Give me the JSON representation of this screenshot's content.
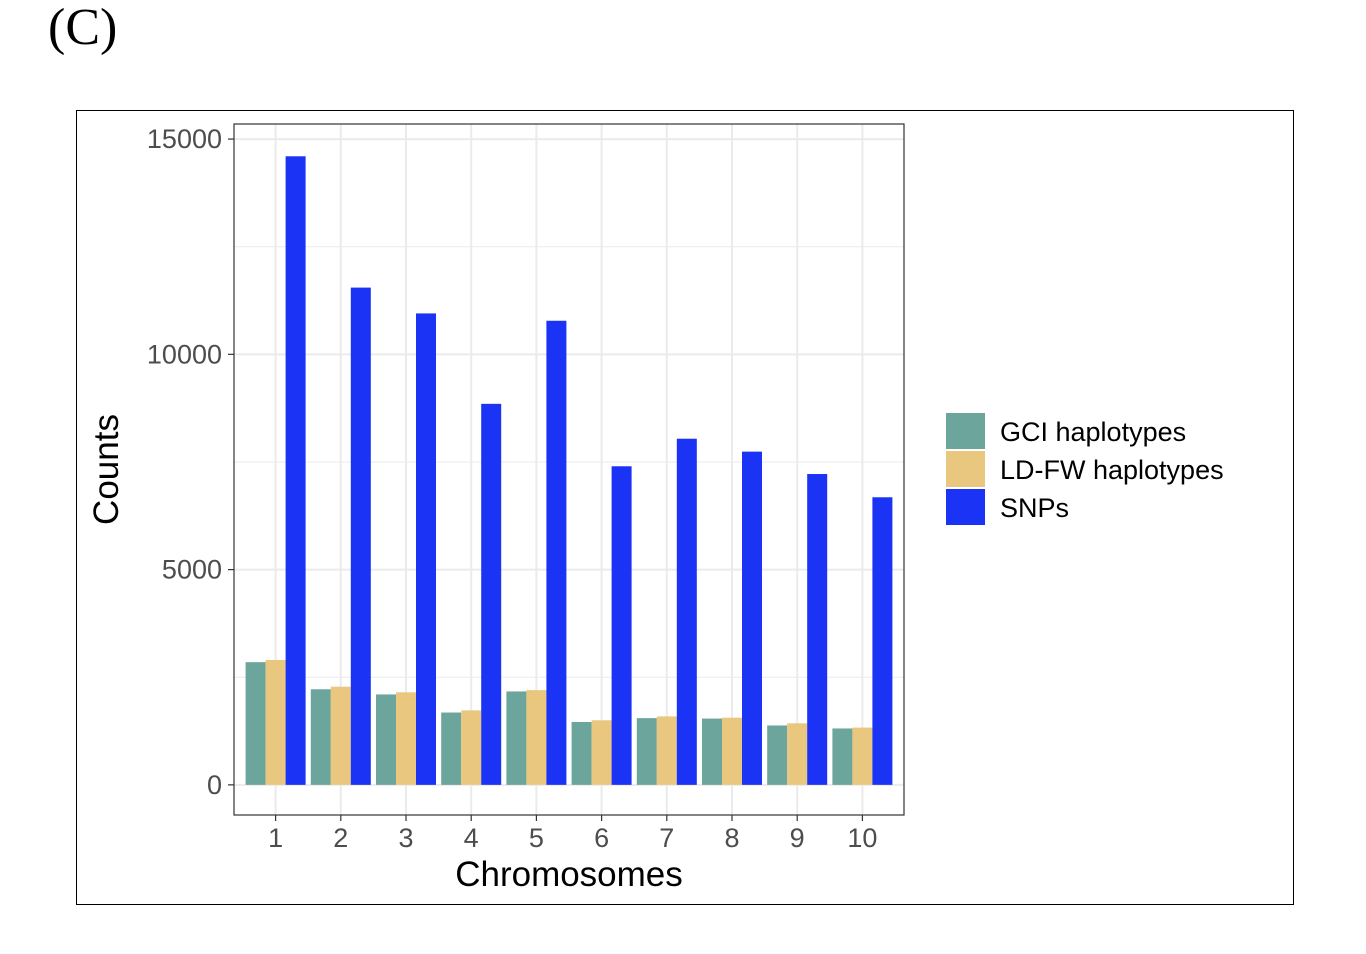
{
  "panel_label": "(C)",
  "chart_data": {
    "type": "bar",
    "title": "",
    "xlabel": "Chromosomes",
    "ylabel": "Counts",
    "categories": [
      "1",
      "2",
      "3",
      "4",
      "5",
      "6",
      "7",
      "8",
      "9",
      "10"
    ],
    "ylim": [
      -700,
      15350
    ],
    "yticks": [
      0,
      5000,
      10000,
      15000
    ],
    "yticklabels": [
      "0",
      "5000",
      "10000",
      "15000"
    ],
    "grid": true,
    "legend_position": "right",
    "series": [
      {
        "name": "GCI haplotypes",
        "color": "#6ba59b",
        "values": [
          2850,
          2220,
          2100,
          1680,
          2170,
          1460,
          1550,
          1540,
          1380,
          1310
        ]
      },
      {
        "name": "LD-FW haplotypes",
        "color": "#e9c77e",
        "values": [
          2900,
          2280,
          2150,
          1730,
          2200,
          1500,
          1590,
          1560,
          1430,
          1330
        ]
      },
      {
        "name": "SNPs",
        "color": "#1a33f5",
        "values": [
          14600,
          11550,
          10950,
          8850,
          10780,
          7400,
          8040,
          7740,
          7220,
          6680
        ]
      }
    ]
  }
}
